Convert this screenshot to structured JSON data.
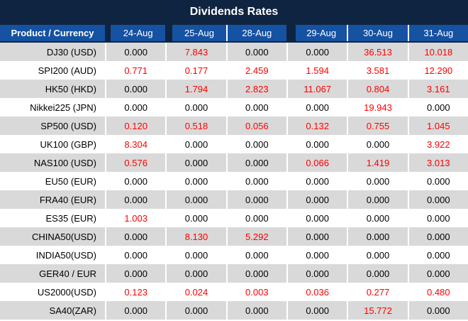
{
  "title": "Dividends Rates",
  "colors": {
    "title_bg": "#0f2440",
    "header_bg": "#1552a2",
    "row_alt_bg": "#d9d9d9",
    "row_bg": "#ffffff",
    "value_red": "#ff0000",
    "text_dark": "#000000",
    "header_text": "#ffffff"
  },
  "chart_data": {
    "type": "table",
    "title": "Dividends Rates",
    "columns": [
      "Product / Currency",
      "24-Aug",
      "25-Aug",
      "28-Aug",
      "29-Aug",
      "30-Aug",
      "31-Aug"
    ],
    "rows": [
      {
        "product": "DJ30 (USD)",
        "values": [
          "0.000",
          "7.843",
          "0.000",
          "0.000",
          "36.513",
          "10.018"
        ],
        "red_flags": [
          false,
          true,
          false,
          false,
          true,
          true
        ]
      },
      {
        "product": "SPI200 (AUD)",
        "values": [
          "0.771",
          "0.177",
          "2.459",
          "1.594",
          "3.581",
          "12.290"
        ],
        "red_flags": [
          true,
          true,
          true,
          true,
          true,
          true
        ]
      },
      {
        "product": "HK50 (HKD)",
        "values": [
          "0.000",
          "1.794",
          "2.823",
          "11.067",
          "0.804",
          "3.161"
        ],
        "red_flags": [
          false,
          true,
          true,
          true,
          true,
          true
        ]
      },
      {
        "product": "Nikkei225 (JPN)",
        "values": [
          "0.000",
          "0.000",
          "0.000",
          "0.000",
          "19.943",
          "0.000"
        ],
        "red_flags": [
          false,
          false,
          false,
          false,
          true,
          false
        ]
      },
      {
        "product": "SP500 (USD)",
        "values": [
          "0.120",
          "0.518",
          "0.056",
          "0.132",
          "0.755",
          "1.045"
        ],
        "red_flags": [
          true,
          true,
          true,
          true,
          true,
          true
        ]
      },
      {
        "product": "UK100 (GBP)",
        "values": [
          "8.304",
          "0.000",
          "0.000",
          "0.000",
          "0.000",
          "3.922"
        ],
        "red_flags": [
          true,
          false,
          false,
          false,
          false,
          true
        ]
      },
      {
        "product": "NAS100 (USD)",
        "values": [
          "0.576",
          "0.000",
          "0.000",
          "0.066",
          "1.419",
          "3.013"
        ],
        "red_flags": [
          true,
          false,
          false,
          true,
          true,
          true
        ]
      },
      {
        "product": "EU50 (EUR)",
        "values": [
          "0.000",
          "0.000",
          "0.000",
          "0.000",
          "0.000",
          "0.000"
        ],
        "red_flags": [
          false,
          false,
          false,
          false,
          false,
          false
        ]
      },
      {
        "product": "FRA40 (EUR)",
        "values": [
          "0.000",
          "0.000",
          "0.000",
          "0.000",
          "0.000",
          "0.000"
        ],
        "red_flags": [
          false,
          false,
          false,
          false,
          false,
          false
        ]
      },
      {
        "product": "ES35 (EUR)",
        "values": [
          "1.003",
          "0.000",
          "0.000",
          "0.000",
          "0.000",
          "0.000"
        ],
        "red_flags": [
          true,
          false,
          false,
          false,
          false,
          false
        ]
      },
      {
        "product": "CHINA50(USD)",
        "values": [
          "0.000",
          "8.130",
          "5.292",
          "0.000",
          "0.000",
          "0.000"
        ],
        "red_flags": [
          false,
          true,
          true,
          false,
          false,
          false
        ]
      },
      {
        "product": "INDIA50(USD)",
        "values": [
          "0.000",
          "0.000",
          "0.000",
          "0.000",
          "0.000",
          "0.000"
        ],
        "red_flags": [
          false,
          false,
          false,
          false,
          false,
          false
        ]
      },
      {
        "product": "GER40 / EUR",
        "values": [
          "0.000",
          "0.000",
          "0.000",
          "0.000",
          "0.000",
          "0.000"
        ],
        "red_flags": [
          false,
          false,
          false,
          false,
          false,
          false
        ]
      },
      {
        "product": "US2000(USD)",
        "values": [
          "0.123",
          "0.024",
          "0.003",
          "0.036",
          "0.277",
          "0.480"
        ],
        "red_flags": [
          true,
          true,
          true,
          true,
          true,
          true
        ]
      },
      {
        "product": "SA40(ZAR)",
        "values": [
          "0.000",
          "0.000",
          "0.000",
          "0.000",
          "15.772",
          "0.000"
        ],
        "red_flags": [
          false,
          false,
          false,
          false,
          true,
          false
        ]
      }
    ]
  }
}
